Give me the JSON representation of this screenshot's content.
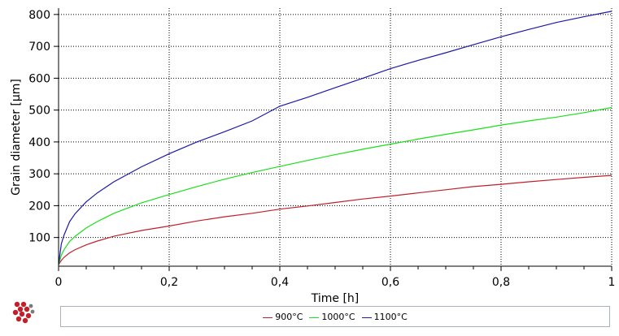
{
  "chart_data": {
    "type": "line",
    "xlabel": "Time [h]",
    "ylabel": "Grain diameter [µm]",
    "xlim": [
      0,
      1
    ],
    "ylim": [
      10,
      820
    ],
    "xticks": [
      0,
      0.2,
      0.4,
      0.6,
      0.8,
      1
    ],
    "xtick_labels": [
      "0",
      "0,2",
      "0,4",
      "0,6",
      "0,8",
      "1"
    ],
    "yticks": [
      100,
      200,
      300,
      400,
      500,
      600,
      700,
      800
    ],
    "ytick_labels": [
      "100",
      "200",
      "300",
      "400",
      "500",
      "600",
      "700",
      "800"
    ],
    "grid": true,
    "legend_position": "bottom",
    "series": [
      {
        "name": "900°C",
        "color": "#c0202a",
        "x": [
          0,
          0.005,
          0.01,
          0.02,
          0.03,
          0.05,
          0.07,
          0.1,
          0.15,
          0.2,
          0.25,
          0.3,
          0.35,
          0.4,
          0.45,
          0.5,
          0.55,
          0.6,
          0.65,
          0.7,
          0.75,
          0.8,
          0.85,
          0.9,
          0.95,
          1.0
        ],
        "values": [
          15,
          28,
          38,
          52,
          62,
          77,
          89,
          104,
          122,
          136,
          152,
          165,
          176,
          189,
          199,
          210,
          221,
          230,
          240,
          250,
          260,
          267,
          275,
          282,
          289,
          295
        ]
      },
      {
        "name": "1000°C",
        "color": "#19e019",
        "x": [
          0,
          0.005,
          0.01,
          0.02,
          0.03,
          0.05,
          0.07,
          0.1,
          0.15,
          0.2,
          0.25,
          0.3,
          0.35,
          0.4,
          0.45,
          0.5,
          0.55,
          0.6,
          0.65,
          0.7,
          0.75,
          0.8,
          0.85,
          0.9,
          0.95,
          1.0
        ],
        "values": [
          15,
          45,
          62,
          88,
          104,
          130,
          150,
          176,
          209,
          235,
          260,
          283,
          304,
          323,
          342,
          360,
          377,
          393,
          409,
          424,
          438,
          453,
          466,
          478,
          492,
          508
        ]
      },
      {
        "name": "1100°C",
        "color": "#1a1aa6",
        "x": [
          0,
          0.005,
          0.01,
          0.02,
          0.03,
          0.05,
          0.07,
          0.1,
          0.15,
          0.2,
          0.25,
          0.3,
          0.35,
          0.4,
          0.45,
          0.5,
          0.55,
          0.6,
          0.65,
          0.7,
          0.75,
          0.8,
          0.85,
          0.9,
          0.95,
          1.0
        ],
        "values": [
          15,
          80,
          108,
          150,
          175,
          212,
          240,
          275,
          322,
          363,
          400,
          432,
          466,
          512,
          540,
          570,
          600,
          630,
          656,
          680,
          705,
          730,
          753,
          775,
          793,
          810
        ]
      }
    ]
  }
}
